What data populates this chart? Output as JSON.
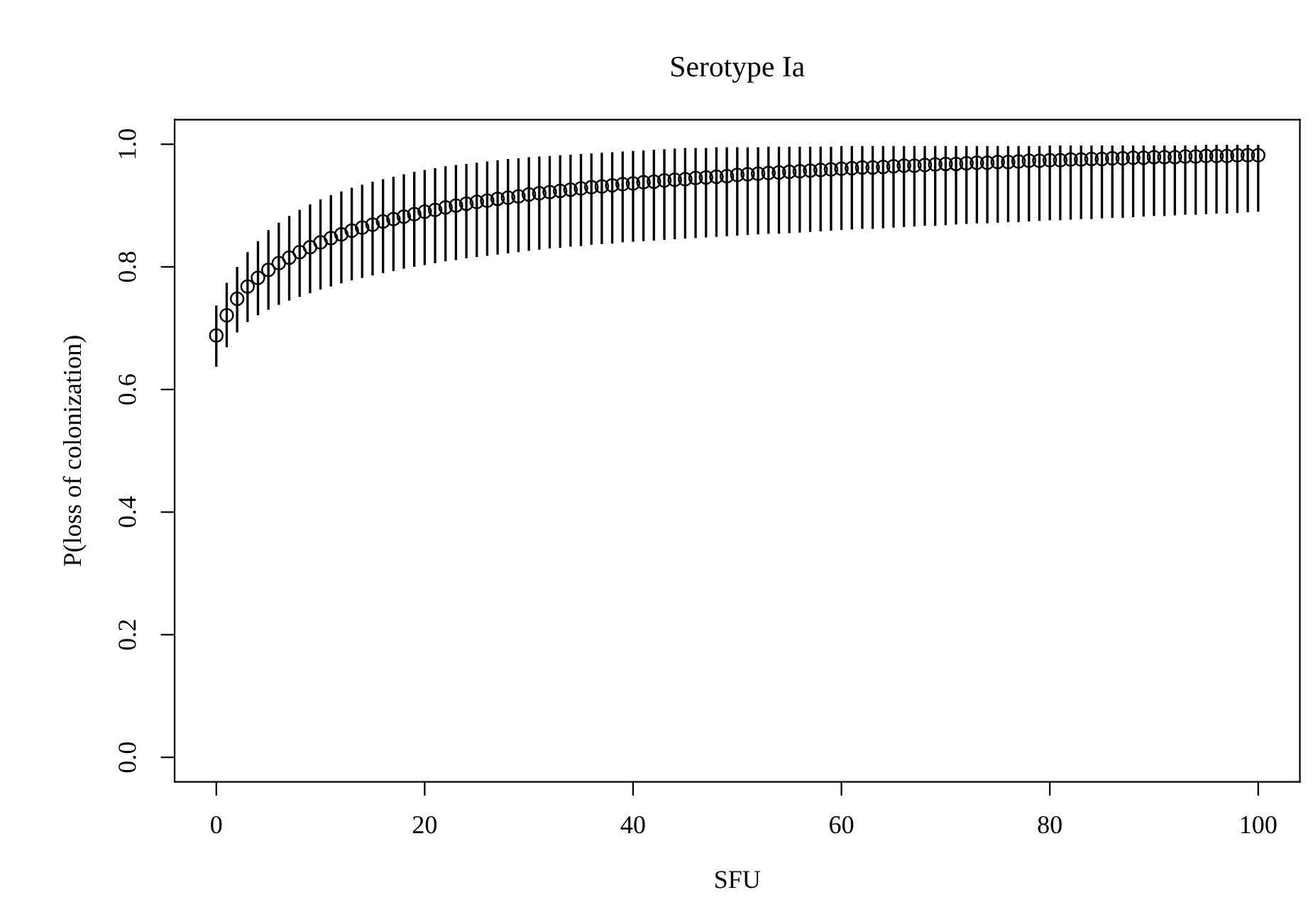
{
  "chart_data": {
    "type": "scatter",
    "title": "Serotype Ia",
    "xlabel": "SFU",
    "ylabel": "P(loss of colonization)",
    "x": [
      0,
      1,
      2,
      3,
      4,
      5,
      6,
      7,
      8,
      9,
      10,
      11,
      12,
      13,
      14,
      15,
      16,
      17,
      18,
      19,
      20,
      21,
      22,
      23,
      24,
      25,
      26,
      27,
      28,
      29,
      30,
      31,
      32,
      33,
      34,
      35,
      36,
      37,
      38,
      39,
      40,
      41,
      42,
      43,
      44,
      45,
      46,
      47,
      48,
      49,
      50,
      51,
      52,
      53,
      54,
      55,
      56,
      57,
      58,
      59,
      60,
      61,
      62,
      63,
      64,
      65,
      66,
      67,
      68,
      69,
      70,
      71,
      72,
      73,
      74,
      75,
      76,
      77,
      78,
      79,
      80,
      81,
      82,
      83,
      84,
      85,
      86,
      87,
      88,
      89,
      90,
      91,
      92,
      93,
      94,
      95,
      96,
      97,
      98,
      99,
      100
    ],
    "values": [
      0.688,
      0.721,
      0.748,
      0.768,
      0.782,
      0.795,
      0.806,
      0.815,
      0.824,
      0.832,
      0.84,
      0.847,
      0.853,
      0.859,
      0.864,
      0.869,
      0.874,
      0.878,
      0.882,
      0.886,
      0.89,
      0.893,
      0.897,
      0.9,
      0.903,
      0.906,
      0.908,
      0.911,
      0.913,
      0.915,
      0.918,
      0.92,
      0.922,
      0.924,
      0.926,
      0.928,
      0.93,
      0.931,
      0.933,
      0.935,
      0.936,
      0.938,
      0.939,
      0.941,
      0.942,
      0.943,
      0.945,
      0.946,
      0.947,
      0.948,
      0.95,
      0.951,
      0.952,
      0.953,
      0.954,
      0.955,
      0.956,
      0.957,
      0.958,
      0.959,
      0.96,
      0.961,
      0.962,
      0.962,
      0.963,
      0.964,
      0.965,
      0.965,
      0.966,
      0.967,
      0.968,
      0.968,
      0.969,
      0.97,
      0.97,
      0.971,
      0.971,
      0.972,
      0.973,
      0.973,
      0.974,
      0.974,
      0.975,
      0.975,
      0.976,
      0.976,
      0.977,
      0.977,
      0.978,
      0.978,
      0.979,
      0.979,
      0.979,
      0.98,
      0.98,
      0.981,
      0.981,
      0.981,
      0.982,
      0.982,
      0.982
    ],
    "errors": [
      [
        0.637,
        0.737
      ],
      [
        0.669,
        0.774
      ],
      [
        0.693,
        0.8
      ],
      [
        0.71,
        0.824
      ],
      [
        0.721,
        0.842
      ],
      [
        0.73,
        0.86
      ],
      [
        0.738,
        0.872
      ],
      [
        0.745,
        0.883
      ],
      [
        0.751,
        0.893
      ],
      [
        0.757,
        0.902
      ],
      [
        0.763,
        0.91
      ],
      [
        0.768,
        0.917
      ],
      [
        0.773,
        0.923
      ],
      [
        0.778,
        0.929
      ],
      [
        0.782,
        0.934
      ],
      [
        0.786,
        0.939
      ],
      [
        0.79,
        0.943
      ],
      [
        0.793,
        0.947
      ],
      [
        0.797,
        0.951
      ],
      [
        0.8,
        0.955
      ],
      [
        0.803,
        0.958
      ],
      [
        0.806,
        0.961
      ],
      [
        0.809,
        0.964
      ],
      [
        0.811,
        0.966
      ],
      [
        0.814,
        0.968
      ],
      [
        0.816,
        0.97
      ],
      [
        0.818,
        0.972
      ],
      [
        0.82,
        0.974
      ],
      [
        0.822,
        0.976
      ],
      [
        0.824,
        0.977
      ],
      [
        0.826,
        0.979
      ],
      [
        0.828,
        0.98
      ],
      [
        0.83,
        0.981
      ],
      [
        0.831,
        0.982
      ],
      [
        0.833,
        0.983
      ],
      [
        0.834,
        0.984
      ],
      [
        0.836,
        0.985
      ],
      [
        0.837,
        0.986
      ],
      [
        0.838,
        0.987
      ],
      [
        0.84,
        0.988
      ],
      [
        0.841,
        0.989
      ],
      [
        0.842,
        0.99
      ],
      [
        0.843,
        0.991
      ],
      [
        0.844,
        0.992
      ],
      [
        0.845,
        0.993
      ],
      [
        0.846,
        0.994
      ],
      [
        0.847,
        0.994
      ],
      [
        0.848,
        0.994
      ],
      [
        0.849,
        0.995
      ],
      [
        0.85,
        0.995
      ],
      [
        0.851,
        0.995
      ],
      [
        0.852,
        0.995
      ],
      [
        0.853,
        0.995
      ],
      [
        0.854,
        0.996
      ],
      [
        0.854,
        0.996
      ],
      [
        0.855,
        0.996
      ],
      [
        0.856,
        0.996
      ],
      [
        0.857,
        0.996
      ],
      [
        0.858,
        0.996
      ],
      [
        0.859,
        0.996
      ],
      [
        0.86,
        0.997
      ],
      [
        0.861,
        0.997
      ],
      [
        0.862,
        0.997
      ],
      [
        0.862,
        0.997
      ],
      [
        0.863,
        0.997
      ],
      [
        0.864,
        0.997
      ],
      [
        0.865,
        0.997
      ],
      [
        0.866,
        0.997
      ],
      [
        0.867,
        0.997
      ],
      [
        0.867,
        0.997
      ],
      [
        0.868,
        0.997
      ],
      [
        0.869,
        0.997
      ],
      [
        0.87,
        0.997
      ],
      [
        0.871,
        0.997
      ],
      [
        0.871,
        0.997
      ],
      [
        0.872,
        0.997
      ],
      [
        0.873,
        0.997
      ],
      [
        0.873,
        0.997
      ],
      [
        0.874,
        0.997
      ],
      [
        0.875,
        0.997
      ],
      [
        0.876,
        0.998
      ],
      [
        0.876,
        0.998
      ],
      [
        0.877,
        0.998
      ],
      [
        0.878,
        0.998
      ],
      [
        0.878,
        0.998
      ],
      [
        0.879,
        0.998
      ],
      [
        0.88,
        0.998
      ],
      [
        0.88,
        0.998
      ],
      [
        0.881,
        0.998
      ],
      [
        0.882,
        0.998
      ],
      [
        0.883,
        0.998
      ],
      [
        0.883,
        0.998
      ],
      [
        0.884,
        0.998
      ],
      [
        0.885,
        0.998
      ],
      [
        0.885,
        0.998
      ],
      [
        0.886,
        0.999
      ],
      [
        0.887,
        0.999
      ],
      [
        0.887,
        0.999
      ],
      [
        0.888,
        0.999
      ],
      [
        0.889,
        0.999
      ],
      [
        0.89,
        0.999
      ]
    ],
    "color": "#000000",
    "marker": "circle",
    "xlim": [
      -4,
      104
    ],
    "ylim": [
      -0.04,
      1.04
    ],
    "xticks": [
      0,
      20,
      40,
      60,
      80,
      100
    ],
    "yticks": [
      {
        "value": 0,
        "label": "0.0"
      },
      {
        "value": 0.2,
        "label": "0.2"
      },
      {
        "value": 0.4,
        "label": "0.4"
      },
      {
        "value": 0.6,
        "label": "0.6"
      },
      {
        "value": 0.8,
        "label": "0.8"
      },
      {
        "value": 1,
        "label": "1.0"
      }
    ],
    "grid": false,
    "legend": false
  }
}
